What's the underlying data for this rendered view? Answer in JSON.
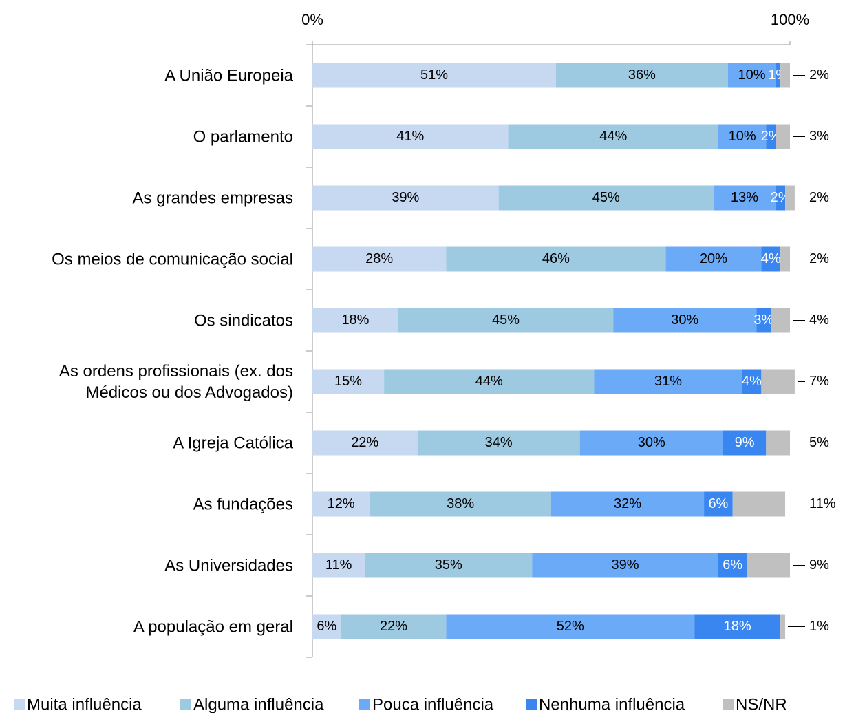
{
  "chart_data": {
    "type": "stacked-bar-horizontal",
    "categories": [
      "A União Europeia",
      "O parlamento",
      "As grandes empresas",
      "Os meios de comunicação social",
      "Os sindicatos",
      "As ordens profissionais (ex. dos\nMédicos ou dos Advogados)",
      "A Igreja Católica",
      "As fundações",
      "As Universidades",
      "A população em geral"
    ],
    "series": [
      {
        "name": "Muita influência",
        "color": "#c6d9f1",
        "values": [
          51,
          41,
          39,
          28,
          18,
          15,
          22,
          12,
          11,
          6
        ],
        "value_labels": [
          "51%",
          "41%",
          "39%",
          "28%",
          "18%",
          "15%",
          "22%",
          "12%",
          "11%",
          "6%"
        ]
      },
      {
        "name": "Alguma influência",
        "color": "#9ecae1",
        "values": [
          36,
          44,
          45,
          46,
          45,
          44,
          34,
          38,
          35,
          22
        ],
        "value_labels": [
          "36%",
          "44%",
          "45%",
          "46%",
          "45%",
          "44%",
          "34%",
          "38%",
          "35%",
          "22%"
        ]
      },
      {
        "name": "Pouca influência",
        "color": "#6aaaf7",
        "values": [
          10,
          10,
          13,
          20,
          30,
          31,
          30,
          32,
          39,
          52
        ],
        "value_labels": [
          "10%",
          "10%",
          "13%",
          "20%",
          "30%",
          "31%",
          "30%",
          "32%",
          "39%",
          "52%"
        ]
      },
      {
        "name": "Nenhuma influência",
        "color": "#3a86f0",
        "values": [
          1,
          2,
          2,
          4,
          3,
          4,
          9,
          6,
          6,
          18
        ],
        "value_labels": [
          "1%",
          "2%",
          "2%",
          "4%",
          "3%",
          "4%",
          "9%",
          "6%",
          "6%",
          "18%"
        ]
      },
      {
        "name": "NS/NR",
        "color": "#c0c0c0",
        "values": [
          2,
          3,
          2,
          2,
          4,
          7,
          5,
          11,
          9,
          1
        ],
        "value_labels": [
          "2%",
          "3%",
          "2%",
          "2%",
          "4%",
          "7%",
          "5%",
          "11%",
          "9%",
          "1%"
        ]
      }
    ],
    "xlim": [
      0,
      100
    ],
    "xticks": [
      {
        "value": 0,
        "label": "0%"
      },
      {
        "value": 100,
        "label": "100%"
      }
    ],
    "legend": "bottom"
  }
}
